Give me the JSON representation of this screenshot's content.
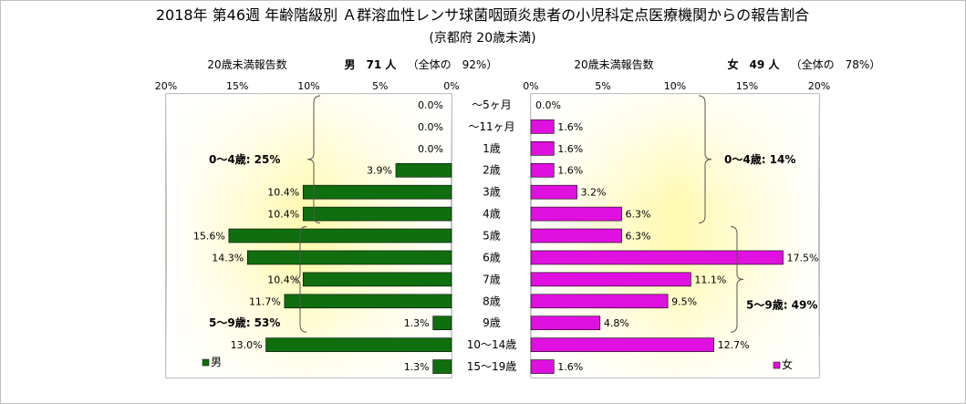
{
  "title": "2018年 第46週 年齢階級別 Ａ群溶血性レンサ球菌咽頭炎患者の小児科定点医療機関からの報告割合",
  "subtitle": "(京都府 20歳未満)",
  "chart_data": {
    "type": "bar",
    "orientation": "horizontal",
    "layout": "back-to-back",
    "title": "2018年 第46週 年齢階級別 Ａ群溶血性レンサ球菌咽頭炎患者の小児科定点医療機関からの報告割合",
    "subtitle": "(京都府 20歳未満)",
    "categories": [
      "～5ヶ月",
      "～11ヶ月",
      "1歳",
      "2歳",
      "3歳",
      "4歳",
      "5歳",
      "6歳",
      "7歳",
      "8歳",
      "9歳",
      "10～14歳",
      "15～19歳"
    ],
    "xlim": [
      0,
      20
    ],
    "xticks": [
      "20%",
      "15%",
      "10%",
      "5%",
      "0%"
    ],
    "xticks_right": [
      "0%",
      "5%",
      "10%",
      "15%",
      "20%"
    ],
    "series": [
      {
        "name": "男",
        "side": "left",
        "color": "#0f6f0f",
        "header_left": "20歳未満報告数",
        "header_main": "男　71 人",
        "header_sub": "（全体の　92%）",
        "values": [
          0.0,
          0.0,
          0.0,
          3.9,
          10.4,
          10.4,
          15.6,
          14.3,
          10.4,
          11.7,
          1.3,
          13.0,
          1.3
        ],
        "labels": [
          "0.0%",
          "0.0%",
          "0.0%",
          "3.9%",
          "10.4%",
          "10.4%",
          "15.6%",
          "14.3%",
          "10.4%",
          "11.7%",
          "1.3%",
          "13.0%",
          "1.3%"
        ],
        "groups": [
          {
            "label": "0～4歳: 25%"
          },
          {
            "label": "5～9歳: 53%"
          }
        ]
      },
      {
        "name": "女",
        "side": "right",
        "color": "#e010e0",
        "header_left": "20歳未満報告数",
        "header_main": "女　49 人",
        "header_sub": "（全体の　78%）",
        "values": [
          0.0,
          1.6,
          1.6,
          1.6,
          3.2,
          6.3,
          6.3,
          17.5,
          11.1,
          9.5,
          4.8,
          12.7,
          1.6
        ],
        "labels": [
          "0.0%",
          "1.6%",
          "1.6%",
          "1.6%",
          "3.2%",
          "6.3%",
          "6.3%",
          "17.5%",
          "11.1%",
          "9.5%",
          "4.8%",
          "12.7%",
          "1.6%"
        ],
        "groups": [
          {
            "label": "0～4歳: 14%"
          },
          {
            "label": "5～9歳: 49%"
          }
        ]
      }
    ],
    "plot_background": "#fffbc0"
  }
}
